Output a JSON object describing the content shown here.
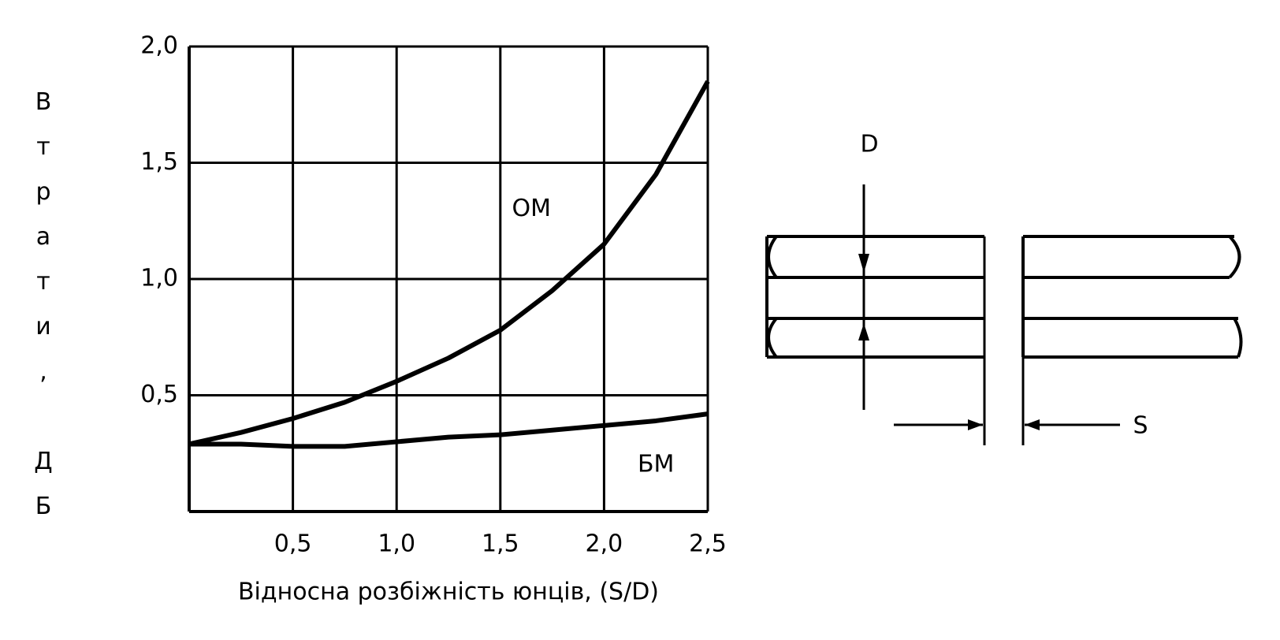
{
  "chart_data": {
    "type": "line",
    "ylabel": "Втрати, ДБ",
    "xlabel": "Відносна розбіжність юнців, (S/D)",
    "x": [
      0,
      0.25,
      0.5,
      0.75,
      1.0,
      1.25,
      1.5,
      1.75,
      2.0,
      2.25,
      2.5
    ],
    "series": [
      {
        "name": "ОМ",
        "color": "#000000",
        "values": [
          0.29,
          0.34,
          0.4,
          0.47,
          0.56,
          0.66,
          0.78,
          0.95,
          1.15,
          1.45,
          1.85
        ]
      },
      {
        "name": "БМ",
        "color": "#000000",
        "values": [
          0.29,
          0.29,
          0.28,
          0.28,
          0.3,
          0.32,
          0.33,
          0.35,
          0.37,
          0.39,
          0.42
        ]
      }
    ],
    "xlim": [
      0,
      2.5
    ],
    "xticks": [
      {
        "value": 0.5,
        "label": "0,5"
      },
      {
        "value": 1.0,
        "label": "1,0"
      },
      {
        "value": 1.5,
        "label": "1,5"
      },
      {
        "value": 2.0,
        "label": "2,0"
      },
      {
        "value": 2.5,
        "label": "2,5"
      }
    ],
    "ylim": [
      0,
      2
    ],
    "yticks": [
      {
        "value": 0.5,
        "label": "0,5"
      },
      {
        "value": 1.0,
        "label": "1,0"
      },
      {
        "value": 1.5,
        "label": "1,5"
      },
      {
        "value": 2.0,
        "label": "2,0"
      }
    ],
    "grid": true
  },
  "diagram": {
    "labels": [
      "D",
      "S"
    ]
  }
}
